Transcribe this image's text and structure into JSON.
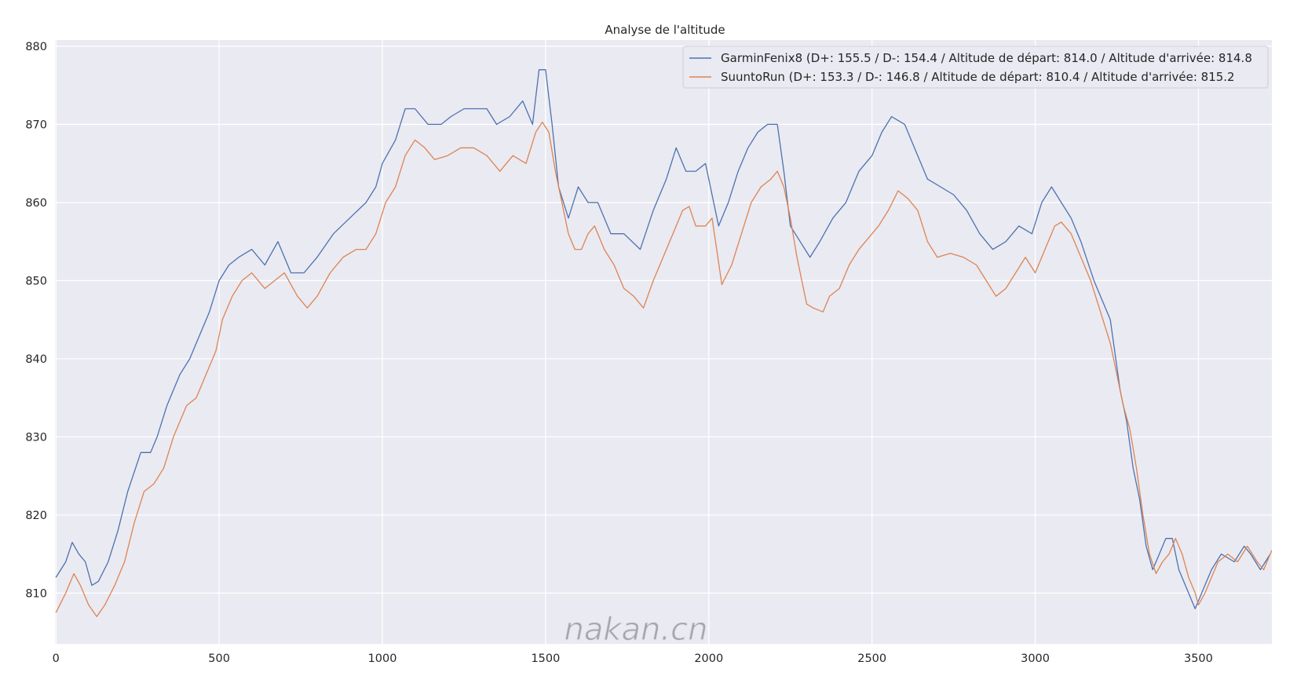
{
  "chart_data": {
    "type": "line",
    "title": "Analyse de l'altitude",
    "xlabel": "",
    "ylabel": "",
    "xlim": [
      -3,
      3725
    ],
    "ylim": [
      803.5,
      880.8
    ],
    "x_ticks": [
      0,
      500,
      1000,
      1500,
      2000,
      2500,
      3000,
      3500
    ],
    "y_ticks": [
      810,
      820,
      830,
      840,
      850,
      860,
      870,
      880
    ],
    "grid": true,
    "legend_position": "top-right",
    "background": "#eaeaf2",
    "series": [
      {
        "name": "GarminFenix8 (D+: 155.5 / D-: 154.4 / Altitude de départ: 814.0 / Altitude d'arrivée: 814.8",
        "color": "#4c72b0",
        "points": [
          [
            0,
            812
          ],
          [
            30,
            814
          ],
          [
            50,
            816.5
          ],
          [
            70,
            815
          ],
          [
            90,
            814
          ],
          [
            110,
            811
          ],
          [
            130,
            811.5
          ],
          [
            160,
            814
          ],
          [
            190,
            818
          ],
          [
            220,
            823
          ],
          [
            260,
            828
          ],
          [
            290,
            828
          ],
          [
            310,
            830
          ],
          [
            340,
            834
          ],
          [
            380,
            838
          ],
          [
            410,
            840
          ],
          [
            440,
            843
          ],
          [
            470,
            846
          ],
          [
            500,
            850
          ],
          [
            530,
            852
          ],
          [
            560,
            853
          ],
          [
            600,
            854
          ],
          [
            640,
            852
          ],
          [
            680,
            855
          ],
          [
            720,
            851
          ],
          [
            760,
            851
          ],
          [
            800,
            853
          ],
          [
            850,
            856
          ],
          [
            900,
            858
          ],
          [
            950,
            860
          ],
          [
            980,
            862
          ],
          [
            1000,
            865
          ],
          [
            1040,
            868
          ],
          [
            1070,
            872
          ],
          [
            1100,
            872
          ],
          [
            1140,
            870
          ],
          [
            1180,
            870
          ],
          [
            1210,
            871
          ],
          [
            1250,
            872
          ],
          [
            1280,
            872
          ],
          [
            1320,
            872
          ],
          [
            1350,
            870
          ],
          [
            1390,
            871
          ],
          [
            1430,
            873
          ],
          [
            1460,
            870
          ],
          [
            1480,
            877
          ],
          [
            1500,
            877
          ],
          [
            1520,
            870
          ],
          [
            1540,
            862
          ],
          [
            1570,
            858
          ],
          [
            1600,
            862
          ],
          [
            1630,
            860
          ],
          [
            1660,
            860
          ],
          [
            1700,
            856
          ],
          [
            1740,
            856
          ],
          [
            1790,
            854
          ],
          [
            1830,
            859
          ],
          [
            1870,
            863
          ],
          [
            1900,
            867
          ],
          [
            1930,
            864
          ],
          [
            1960,
            864
          ],
          [
            1990,
            865
          ],
          [
            2030,
            857
          ],
          [
            2060,
            860
          ],
          [
            2090,
            864
          ],
          [
            2120,
            867
          ],
          [
            2150,
            869
          ],
          [
            2180,
            870
          ],
          [
            2210,
            870
          ],
          [
            2230,
            864
          ],
          [
            2250,
            857
          ],
          [
            2280,
            855
          ],
          [
            2310,
            853
          ],
          [
            2340,
            855
          ],
          [
            2380,
            858
          ],
          [
            2420,
            860
          ],
          [
            2460,
            864
          ],
          [
            2500,
            866
          ],
          [
            2530,
            869
          ],
          [
            2560,
            871
          ],
          [
            2600,
            870
          ],
          [
            2640,
            866
          ],
          [
            2670,
            863
          ],
          [
            2710,
            862
          ],
          [
            2750,
            861
          ],
          [
            2790,
            859
          ],
          [
            2830,
            856
          ],
          [
            2870,
            854
          ],
          [
            2910,
            855
          ],
          [
            2950,
            857
          ],
          [
            2990,
            856
          ],
          [
            3020,
            860
          ],
          [
            3050,
            862
          ],
          [
            3080,
            860
          ],
          [
            3110,
            858
          ],
          [
            3140,
            855
          ],
          [
            3180,
            850
          ],
          [
            3210,
            847
          ],
          [
            3230,
            845
          ],
          [
            3260,
            836
          ],
          [
            3280,
            832
          ],
          [
            3300,
            826
          ],
          [
            3320,
            822
          ],
          [
            3340,
            816
          ],
          [
            3360,
            813
          ],
          [
            3380,
            815
          ],
          [
            3400,
            817
          ],
          [
            3420,
            817
          ],
          [
            3440,
            813
          ],
          [
            3460,
            811
          ],
          [
            3480,
            809
          ],
          [
            3490,
            808
          ],
          [
            3510,
            810
          ],
          [
            3540,
            813
          ],
          [
            3570,
            815
          ],
          [
            3610,
            814
          ],
          [
            3640,
            816
          ],
          [
            3660,
            815
          ],
          [
            3690,
            813
          ],
          [
            3720,
            815
          ]
        ]
      },
      {
        "name": "SuuntoRun (D+: 153.3 / D-: 146.8 / Altitude de départ: 810.4 / Altitude d'arrivée: 815.2",
        "color": "#dd8452",
        "points": [
          [
            0,
            807.5
          ],
          [
            30,
            810
          ],
          [
            55,
            812.5
          ],
          [
            75,
            811
          ],
          [
            100,
            808.5
          ],
          [
            125,
            807
          ],
          [
            150,
            808.5
          ],
          [
            180,
            811
          ],
          [
            210,
            814
          ],
          [
            240,
            819
          ],
          [
            270,
            823
          ],
          [
            300,
            824
          ],
          [
            330,
            826
          ],
          [
            360,
            830
          ],
          [
            400,
            834
          ],
          [
            430,
            835
          ],
          [
            460,
            838
          ],
          [
            490,
            841
          ],
          [
            510,
            845
          ],
          [
            540,
            848
          ],
          [
            570,
            850
          ],
          [
            600,
            851
          ],
          [
            640,
            849
          ],
          [
            670,
            850
          ],
          [
            700,
            851
          ],
          [
            740,
            848
          ],
          [
            770,
            846.5
          ],
          [
            800,
            848
          ],
          [
            840,
            851
          ],
          [
            880,
            853
          ],
          [
            920,
            854
          ],
          [
            950,
            854
          ],
          [
            980,
            856
          ],
          [
            1010,
            860
          ],
          [
            1040,
            862
          ],
          [
            1070,
            866
          ],
          [
            1100,
            868
          ],
          [
            1130,
            867
          ],
          [
            1160,
            865.5
          ],
          [
            1200,
            866
          ],
          [
            1240,
            867
          ],
          [
            1280,
            867
          ],
          [
            1320,
            866
          ],
          [
            1360,
            864
          ],
          [
            1400,
            866
          ],
          [
            1440,
            865
          ],
          [
            1470,
            869
          ],
          [
            1490,
            870.3
          ],
          [
            1510,
            869
          ],
          [
            1530,
            864
          ],
          [
            1550,
            860
          ],
          [
            1570,
            856
          ],
          [
            1590,
            854
          ],
          [
            1610,
            854
          ],
          [
            1630,
            856
          ],
          [
            1650,
            857
          ],
          [
            1680,
            854
          ],
          [
            1710,
            852
          ],
          [
            1740,
            849
          ],
          [
            1770,
            848
          ],
          [
            1800,
            846.5
          ],
          [
            1830,
            850
          ],
          [
            1860,
            853
          ],
          [
            1890,
            856
          ],
          [
            1920,
            859
          ],
          [
            1940,
            859.5
          ],
          [
            1960,
            857
          ],
          [
            1990,
            857
          ],
          [
            2010,
            858
          ],
          [
            2040,
            849.5
          ],
          [
            2070,
            852
          ],
          [
            2100,
            856
          ],
          [
            2130,
            860
          ],
          [
            2160,
            862
          ],
          [
            2190,
            863
          ],
          [
            2210,
            864
          ],
          [
            2230,
            862
          ],
          [
            2250,
            858
          ],
          [
            2270,
            853
          ],
          [
            2300,
            847
          ],
          [
            2320,
            846.5
          ],
          [
            2350,
            846
          ],
          [
            2370,
            848
          ],
          [
            2400,
            849
          ],
          [
            2430,
            852
          ],
          [
            2460,
            854
          ],
          [
            2490,
            855.5
          ],
          [
            2520,
            857
          ],
          [
            2550,
            859
          ],
          [
            2580,
            861.5
          ],
          [
            2610,
            860.5
          ],
          [
            2640,
            859
          ],
          [
            2670,
            855
          ],
          [
            2700,
            853
          ],
          [
            2740,
            853.5
          ],
          [
            2780,
            853
          ],
          [
            2820,
            852
          ],
          [
            2850,
            850
          ],
          [
            2880,
            848
          ],
          [
            2910,
            849
          ],
          [
            2940,
            851
          ],
          [
            2970,
            853
          ],
          [
            3000,
            851
          ],
          [
            3030,
            854
          ],
          [
            3060,
            857
          ],
          [
            3080,
            857.5
          ],
          [
            3110,
            856
          ],
          [
            3140,
            853
          ],
          [
            3170,
            850
          ],
          [
            3200,
            846
          ],
          [
            3230,
            842
          ],
          [
            3250,
            838
          ],
          [
            3270,
            834
          ],
          [
            3290,
            831
          ],
          [
            3310,
            826
          ],
          [
            3330,
            820
          ],
          [
            3350,
            815
          ],
          [
            3370,
            812.5
          ],
          [
            3390,
            814
          ],
          [
            3410,
            815
          ],
          [
            3430,
            817
          ],
          [
            3450,
            815
          ],
          [
            3470,
            812
          ],
          [
            3490,
            810
          ],
          [
            3500,
            808.5
          ],
          [
            3520,
            810
          ],
          [
            3540,
            812
          ],
          [
            3560,
            814
          ],
          [
            3590,
            815
          ],
          [
            3620,
            814
          ],
          [
            3650,
            816
          ],
          [
            3680,
            814
          ],
          [
            3700,
            813
          ],
          [
            3725,
            815.5
          ]
        ]
      }
    ]
  },
  "watermark": "nakan.cn"
}
